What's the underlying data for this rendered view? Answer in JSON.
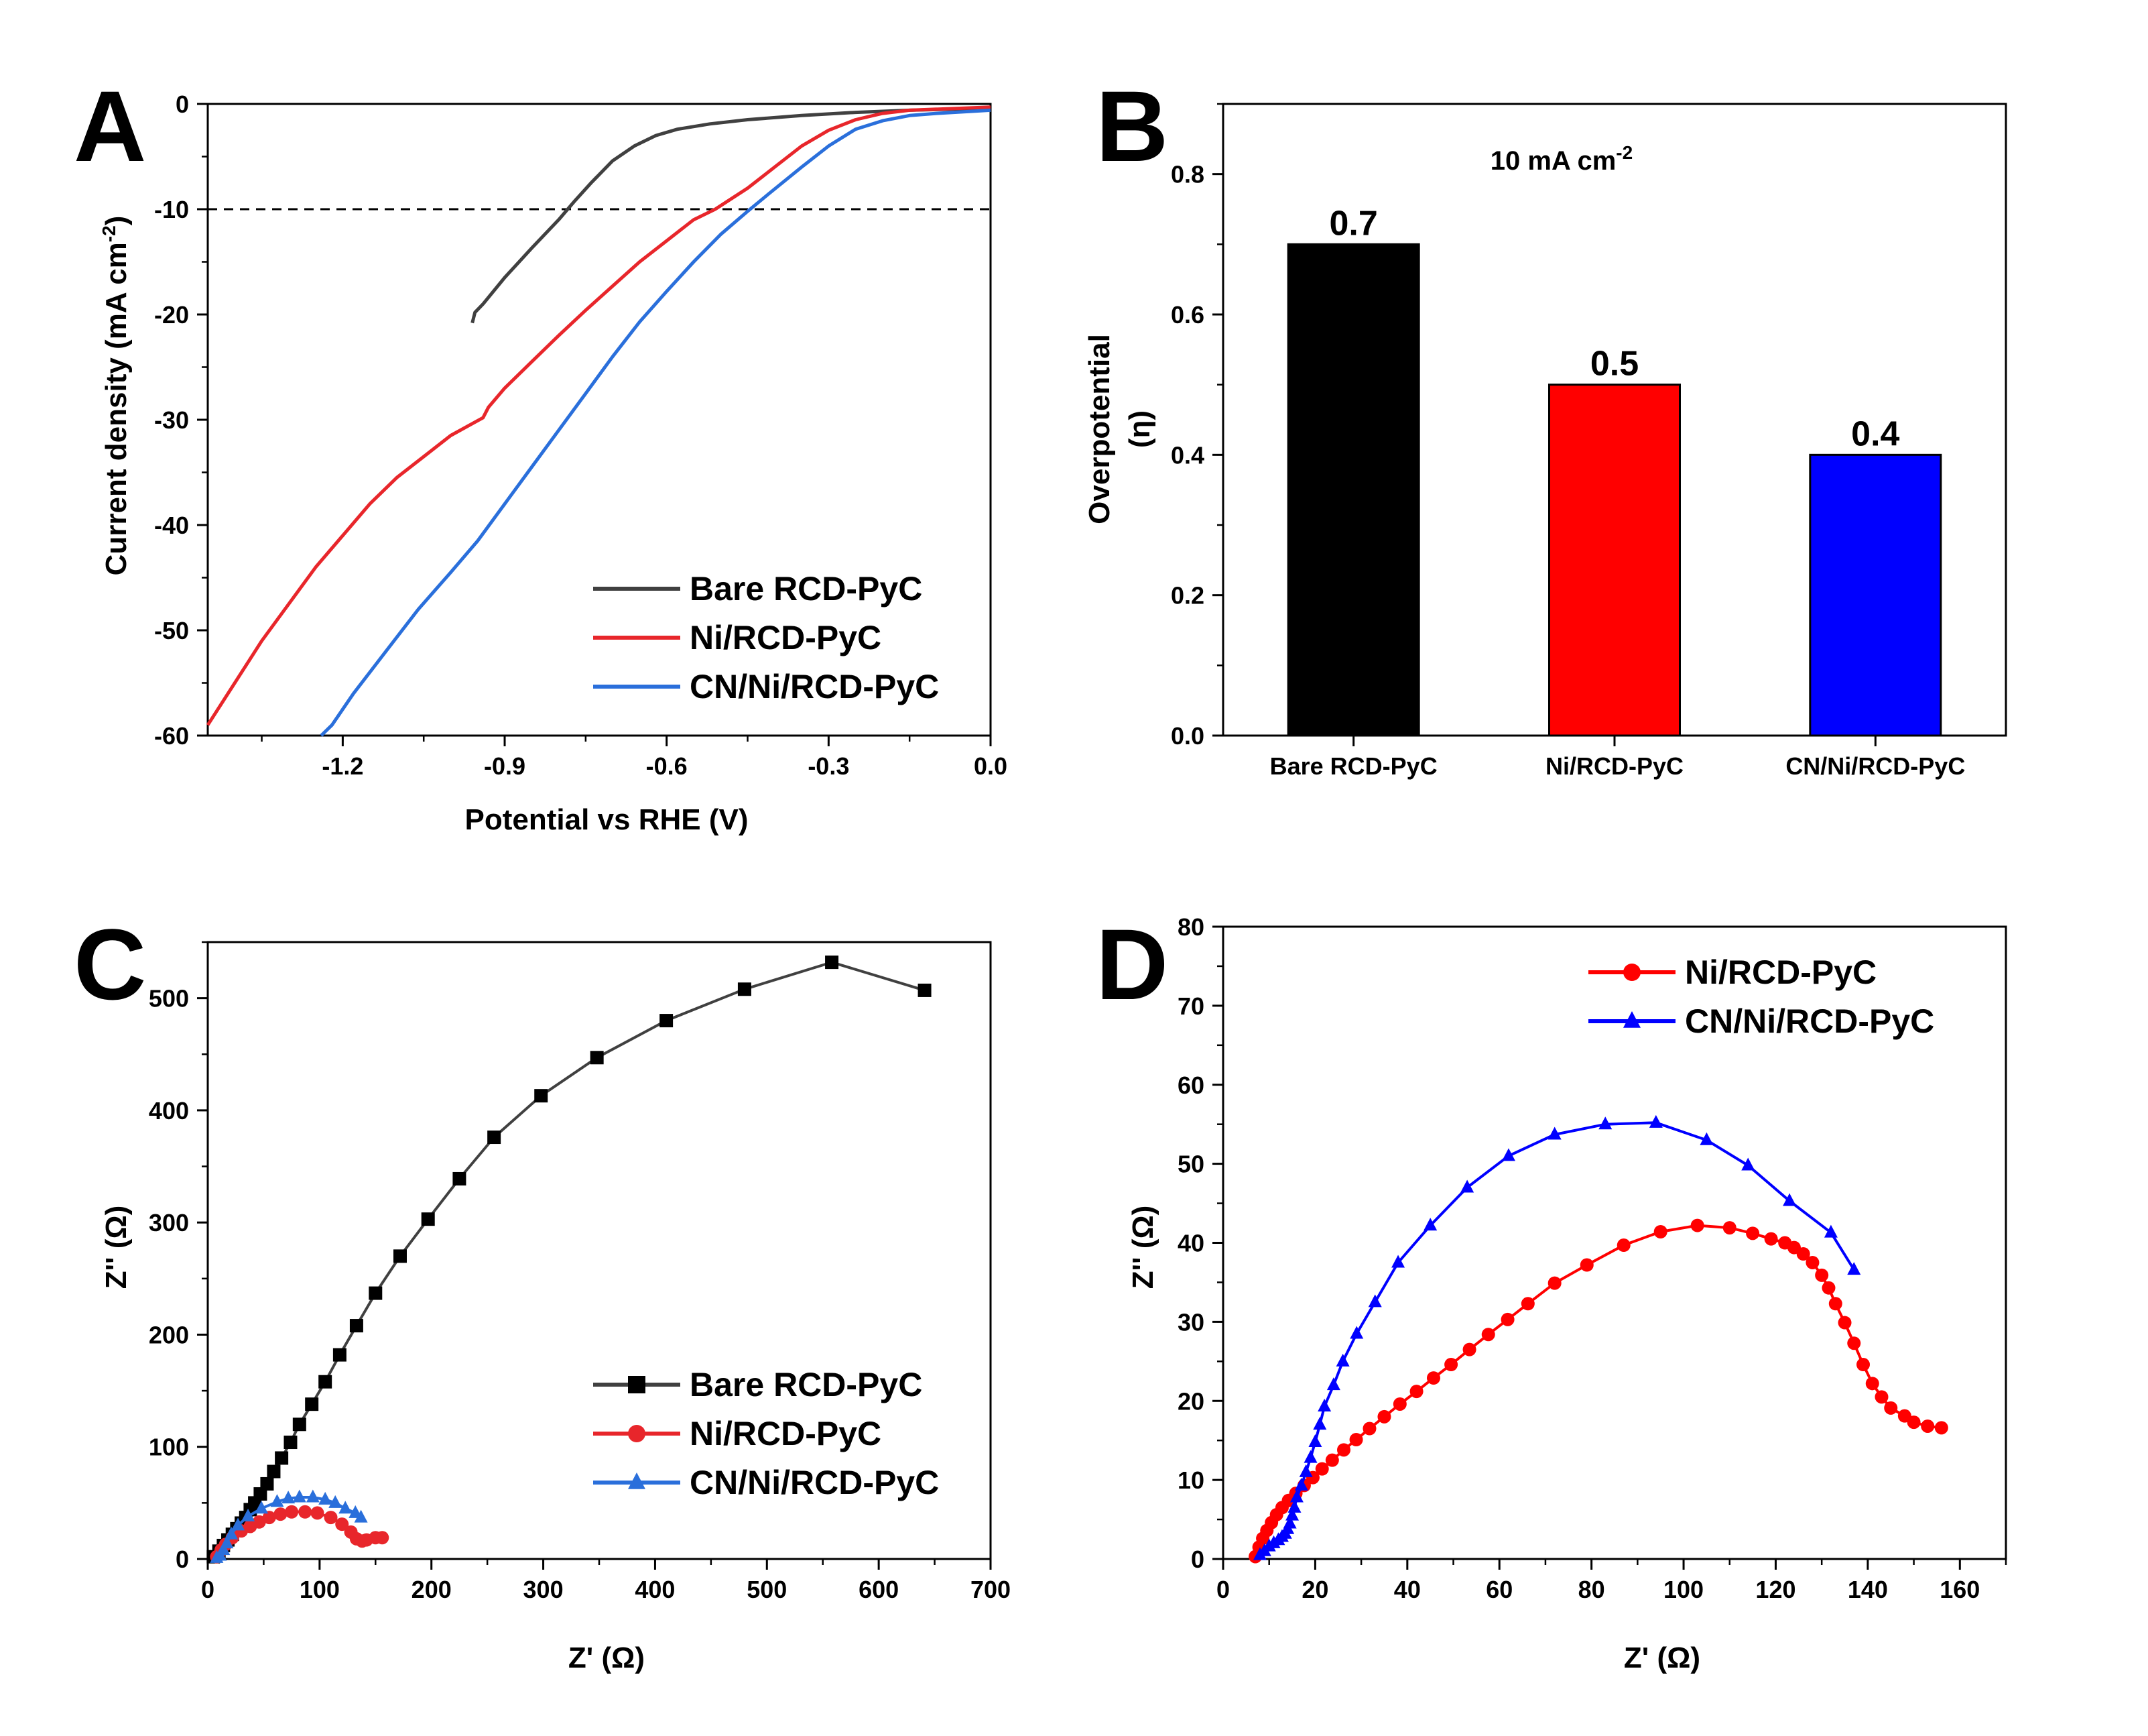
{
  "chart_data": [
    {
      "panel": "A",
      "type": "line",
      "xlabel": "Potential vs RHE (V)",
      "ylabel": "Current density (mA cm",
      "ylabel_sup": "-2",
      "ylabel_end": ")",
      "xlim": [
        -1.45,
        0.0
      ],
      "ylim": [
        -60,
        0
      ],
      "xticks": [
        -1.2,
        -0.9,
        -0.6,
        -0.3,
        0.0
      ],
      "xtick_labels": [
        "-1.2",
        "-0.9",
        "-0.6",
        "-0.3",
        "0.0"
      ],
      "yticks": [
        0,
        -10,
        -20,
        -30,
        -40,
        -50,
        -60
      ],
      "ytick_labels": [
        "0",
        "-10",
        "-20",
        "-30",
        "-40",
        "-50",
        "-60"
      ],
      "reference_line": {
        "y": -10,
        "style": "dashed"
      },
      "legend_position": "bottom-right",
      "series": [
        {
          "name": "Bare RCD-PyC",
          "color": "#404040",
          "x": [
            -0.96,
            -0.955,
            -0.94,
            -0.9,
            -0.85,
            -0.8,
            -0.77,
            -0.74,
            -0.7,
            -0.66,
            -0.62,
            -0.58,
            -0.52,
            -0.45,
            -0.35,
            -0.25,
            -0.15,
            0.0
          ],
          "y": [
            -20.8,
            -19.8,
            -19.0,
            -16.5,
            -13.7,
            -11.0,
            -9.2,
            -7.5,
            -5.4,
            -4.0,
            -3.0,
            -2.4,
            -1.9,
            -1.5,
            -1.1,
            -0.8,
            -0.6,
            -0.4
          ]
        },
        {
          "name": "Ni/RCD-PyC",
          "color": "#e8262b",
          "x": [
            -1.45,
            -1.4,
            -1.35,
            -1.3,
            -1.25,
            -1.2,
            -1.15,
            -1.1,
            -1.05,
            -1.0,
            -0.94,
            -0.93,
            -0.9,
            -0.85,
            -0.8,
            -0.75,
            -0.7,
            -0.65,
            -0.6,
            -0.55,
            -0.51,
            -0.45,
            -0.4,
            -0.35,
            -0.3,
            -0.25,
            -0.2,
            -0.15,
            0.0
          ],
          "y": [
            -59.0,
            -55.0,
            -51.0,
            -47.5,
            -44.0,
            -41.0,
            -38.0,
            -35.5,
            -33.5,
            -31.5,
            -29.8,
            -28.8,
            -27.0,
            -24.5,
            -22.0,
            -19.6,
            -17.3,
            -15.0,
            -13.0,
            -11.0,
            -10.0,
            -8.0,
            -6.0,
            -4.0,
            -2.5,
            -1.5,
            -0.9,
            -0.6,
            -0.3
          ]
        },
        {
          "name": "CN/Ni/RCD-PyC",
          "color": "#2a6fdb",
          "x": [
            -1.24,
            -1.22,
            -1.18,
            -1.12,
            -1.06,
            -1.0,
            -0.95,
            -0.9,
            -0.85,
            -0.8,
            -0.75,
            -0.7,
            -0.65,
            -0.6,
            -0.55,
            -0.5,
            -0.45,
            -0.41,
            -0.35,
            -0.3,
            -0.25,
            -0.2,
            -0.15,
            -0.1,
            0.0
          ],
          "y": [
            -60.0,
            -59.0,
            -56.0,
            -52.0,
            -48.0,
            -44.5,
            -41.5,
            -38.0,
            -34.5,
            -31.0,
            -27.5,
            -24.0,
            -20.7,
            -17.8,
            -15.0,
            -12.4,
            -10.2,
            -8.5,
            -6.0,
            -4.0,
            -2.4,
            -1.6,
            -1.1,
            -0.9,
            -0.6
          ]
        }
      ]
    },
    {
      "panel": "B",
      "type": "bar",
      "ylabel": "Overpotential",
      "ylabel2": "(η)",
      "annotation": "10 mA cm",
      "annotation_sup": "-2",
      "ylim": [
        0.0,
        0.9
      ],
      "yticks": [
        0.0,
        0.2,
        0.4,
        0.6,
        0.8
      ],
      "ytick_labels": [
        "0.0",
        "0.2",
        "0.4",
        "0.6",
        "0.8"
      ],
      "categories": [
        "Bare RCD-PyC",
        "Ni/RCD-PyC",
        "CN/Ni/RCD-PyC"
      ],
      "values": [
        0.7,
        0.5,
        0.4
      ],
      "value_labels": [
        "0.7",
        "0.5",
        "0.4"
      ],
      "colors": [
        "#000000",
        "#ff0000",
        "#0000ff"
      ]
    },
    {
      "panel": "C",
      "type": "scatter",
      "xlabel": "Z' (Ω)",
      "ylabel": "Z'' (Ω)",
      "xlim": [
        0,
        700
      ],
      "ylim": [
        0,
        550
      ],
      "xticks": [
        0,
        100,
        200,
        300,
        400,
        500,
        600,
        700
      ],
      "xtick_labels": [
        "0",
        "100",
        "200",
        "300",
        "400",
        "500",
        "600",
        "700"
      ],
      "yticks": [
        0,
        100,
        200,
        300,
        400,
        500
      ],
      "ytick_labels": [
        "0",
        "100",
        "200",
        "300",
        "400",
        "500"
      ],
      "legend_position": "bottom-right",
      "series": [
        {
          "name": "Bare RCD-PyC",
          "color": "#000000",
          "line_color": "#404040",
          "marker": "square",
          "x": [
            5,
            10,
            14,
            18,
            22,
            26,
            30,
            34,
            38,
            42,
            47,
            53,
            59,
            66,
            74,
            82,
            93,
            105,
            118,
            133,
            150,
            172,
            197,
            225,
            256,
            298,
            348,
            410,
            480,
            558,
            641
          ],
          "y": [
            2,
            7,
            12,
            17,
            22,
            27,
            32,
            37,
            44,
            50,
            58,
            67,
            78,
            90,
            104,
            120,
            138,
            158,
            182,
            208,
            237,
            270,
            303,
            339,
            376,
            413,
            447,
            480,
            508,
            532,
            507
          ]
        },
        {
          "name": "Ni/RCD-PyC",
          "color": "#e8262b",
          "line_color": "#e8262b",
          "marker": "circle",
          "x": [
            8,
            12,
            16,
            22,
            30,
            38,
            46,
            55,
            65,
            75,
            87,
            98,
            110,
            120,
            128,
            133,
            138,
            142,
            150,
            156
          ],
          "y": [
            2,
            8,
            13,
            19,
            25,
            29,
            33,
            37,
            40,
            42,
            42,
            41,
            37,
            31,
            24,
            18,
            16,
            17,
            19,
            19
          ]
        },
        {
          "name": "CN/Ni/RCD-PyC",
          "color": "#2a6fdb",
          "line_color": "#2a6fdb",
          "marker": "triangle",
          "x": [
            8,
            11,
            14,
            17,
            21,
            27,
            36,
            48,
            62,
            72,
            82,
            94,
            105,
            114,
            123,
            132,
            137
          ],
          "y": [
            1,
            3,
            8,
            14,
            22,
            30,
            38,
            45,
            51,
            54,
            55,
            55,
            53,
            50,
            45,
            41,
            37
          ]
        }
      ]
    },
    {
      "panel": "D",
      "type": "scatter",
      "xlabel": "Z' (Ω)",
      "ylabel": "Z'' (Ω)",
      "xlim": [
        0,
        170
      ],
      "ylim": [
        0,
        80
      ],
      "xticks": [
        0,
        20,
        40,
        60,
        80,
        100,
        120,
        140,
        160
      ],
      "xtick_labels": [
        "0",
        "20",
        "40",
        "60",
        "80",
        "100",
        "120",
        "140",
        "160"
      ],
      "yticks": [
        0,
        10,
        20,
        30,
        40,
        50,
        60,
        70,
        80
      ],
      "ytick_labels": [
        "0",
        "10",
        "20",
        "30",
        "40",
        "50",
        "60",
        "70",
        "80"
      ],
      "legend_position": "top-right",
      "series": [
        {
          "name": "Ni/RCD-PyC",
          "color": "#ff0000",
          "line_color": "#ff0000",
          "marker": "circle",
          "x": [
            7.0,
            7.8,
            8.6,
            9.5,
            10.5,
            11.6,
            12.8,
            14.2,
            15.8,
            17.6,
            19.5,
            21.5,
            23.7,
            26.2,
            28.9,
            31.8,
            35.0,
            38.4,
            42.0,
            45.7,
            49.5,
            53.5,
            57.6,
            61.8,
            66.2,
            72.0,
            79.0,
            87.0,
            95.0,
            103.0,
            110.0,
            115.0,
            119.0,
            122.0,
            124.0,
            126.0,
            128.0,
            130.0,
            131.5,
            133.0,
            135.0,
            137.0,
            139.0,
            141.0,
            143.0,
            145.0,
            148.0,
            150.0,
            153.0,
            156.0
          ],
          "y": [
            0.3,
            1.5,
            2.6,
            3.6,
            4.6,
            5.6,
            6.5,
            7.4,
            8.3,
            9.3,
            10.3,
            11.4,
            12.5,
            13.8,
            15.1,
            16.5,
            18.0,
            19.6,
            21.2,
            22.9,
            24.6,
            26.5,
            28.4,
            30.3,
            32.3,
            34.9,
            37.2,
            39.7,
            41.4,
            42.2,
            41.9,
            41.2,
            40.5,
            40.0,
            39.4,
            38.6,
            37.5,
            35.9,
            34.3,
            32.3,
            29.9,
            27.3,
            24.6,
            22.2,
            20.5,
            19.1,
            18.1,
            17.3,
            16.8,
            16.6
          ]
        },
        {
          "name": "CN/Ni/RCD-PyC",
          "color": "#0000ff",
          "line_color": "#0000ff",
          "marker": "triangle",
          "x": [
            8.0,
            9.0,
            10.0,
            11.0,
            12.0,
            12.8,
            13.5,
            14.0,
            14.5,
            15.0,
            15.5,
            16.0,
            17.0,
            18.0,
            19.0,
            20.0,
            21.0,
            22.0,
            24.0,
            26.0,
            29.0,
            33.0,
            38.0,
            45.0,
            53.0,
            62.0,
            72.0,
            83.0,
            94.0,
            105.0,
            114.0,
            123.0,
            132.0,
            137.0
          ],
          "y": [
            0.5,
            1.0,
            1.6,
            2.0,
            2.4,
            2.8,
            3.2,
            3.8,
            4.5,
            5.5,
            6.5,
            7.8,
            9.3,
            11.0,
            12.8,
            14.8,
            17.0,
            19.3,
            22.0,
            25.0,
            28.5,
            32.5,
            37.5,
            42.2,
            47.0,
            51.0,
            53.7,
            55.0,
            55.2,
            53.0,
            49.8,
            45.3,
            41.3,
            36.6
          ]
        }
      ]
    }
  ]
}
